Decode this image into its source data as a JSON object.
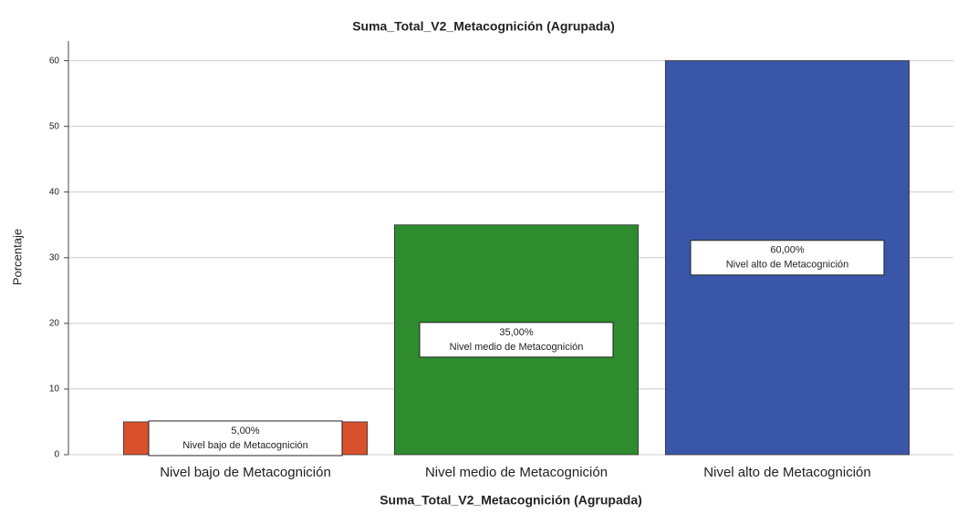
{
  "chart_data": {
    "type": "bar",
    "title": "Suma_Total_V2_Metacognición (Agrupada)",
    "x_label": "Suma_Total_V2_Metacognición (Agrupada)",
    "y_label": "Porcentaje",
    "categories": [
      "Nivel bajo de Metacognición",
      "Nivel medio de Metacognición",
      "Nivel alto de Metacognición"
    ],
    "values": [
      5,
      35,
      60
    ],
    "value_labels": [
      "5,00%",
      "35,00%",
      "60,00%"
    ],
    "colors": [
      "#d9512c",
      "#2e8b2e",
      "#3a56a8"
    ],
    "ylim": [
      0,
      63
    ],
    "yticks": [
      0,
      10,
      20,
      30,
      40,
      50,
      60
    ],
    "grid": true
  }
}
